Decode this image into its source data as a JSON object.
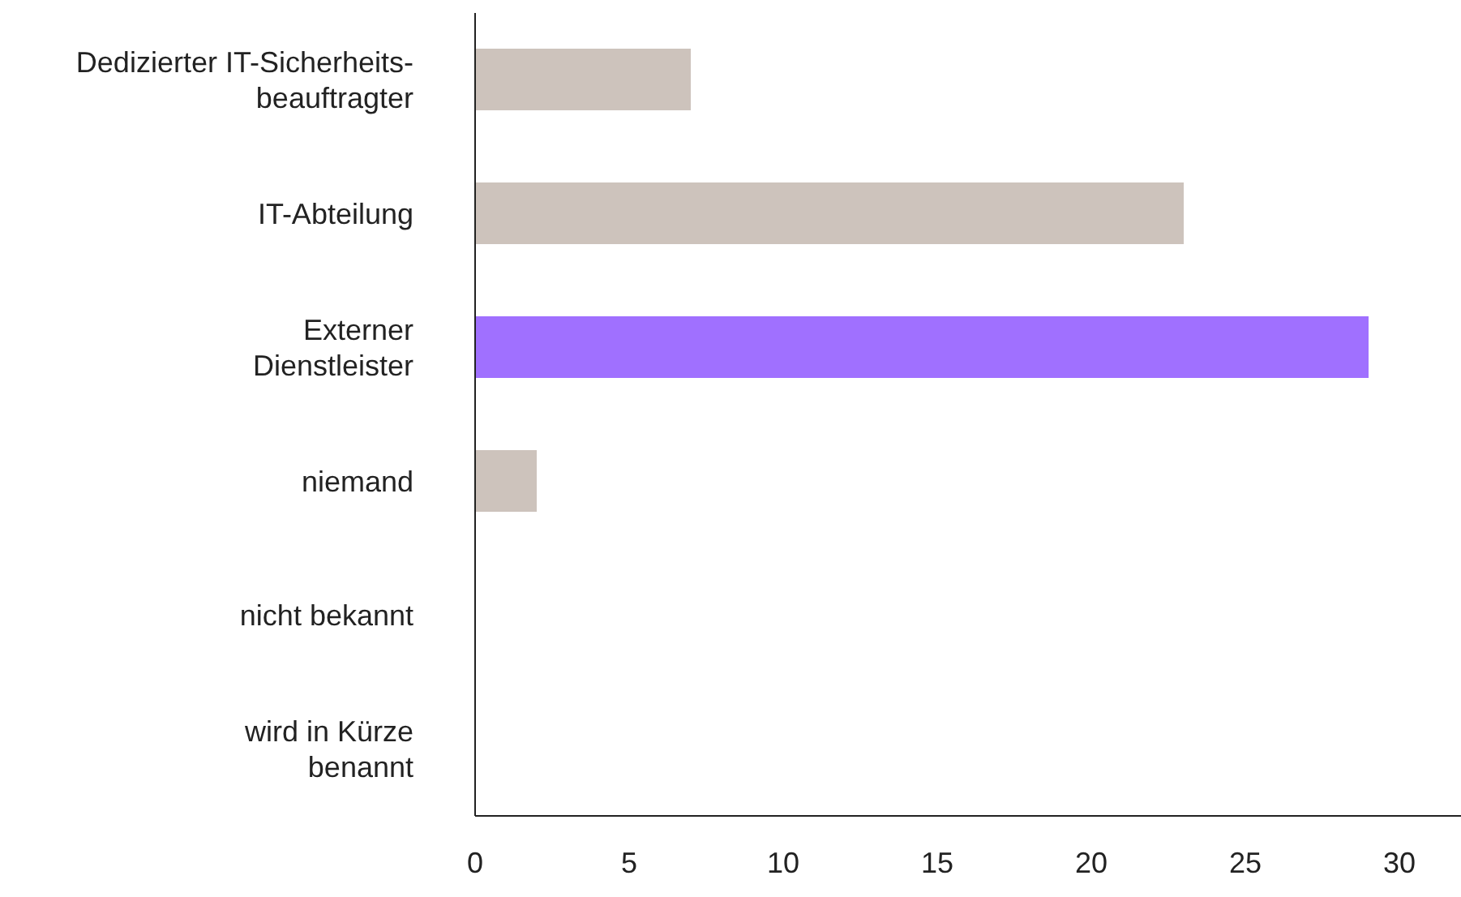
{
  "chart_data": {
    "type": "bar",
    "orientation": "horizontal",
    "categories": [
      "Dedizierter IT-Sicherheits-\nbeauftragter",
      "IT-Abteilung",
      "Externer\nDienstleister",
      "niemand",
      "nicht bekannt",
      "wird in Kürze\nbenannt"
    ],
    "values": [
      7,
      23,
      29,
      2,
      0,
      0
    ],
    "colors": [
      "#cdc3bc",
      "#cdc3bc",
      "#a070ff",
      "#cdc3bc",
      "#cdc3bc",
      "#cdc3bc"
    ],
    "xlim": [
      0,
      32
    ],
    "xticks": [
      0,
      5,
      10,
      15,
      20,
      25,
      30
    ]
  }
}
